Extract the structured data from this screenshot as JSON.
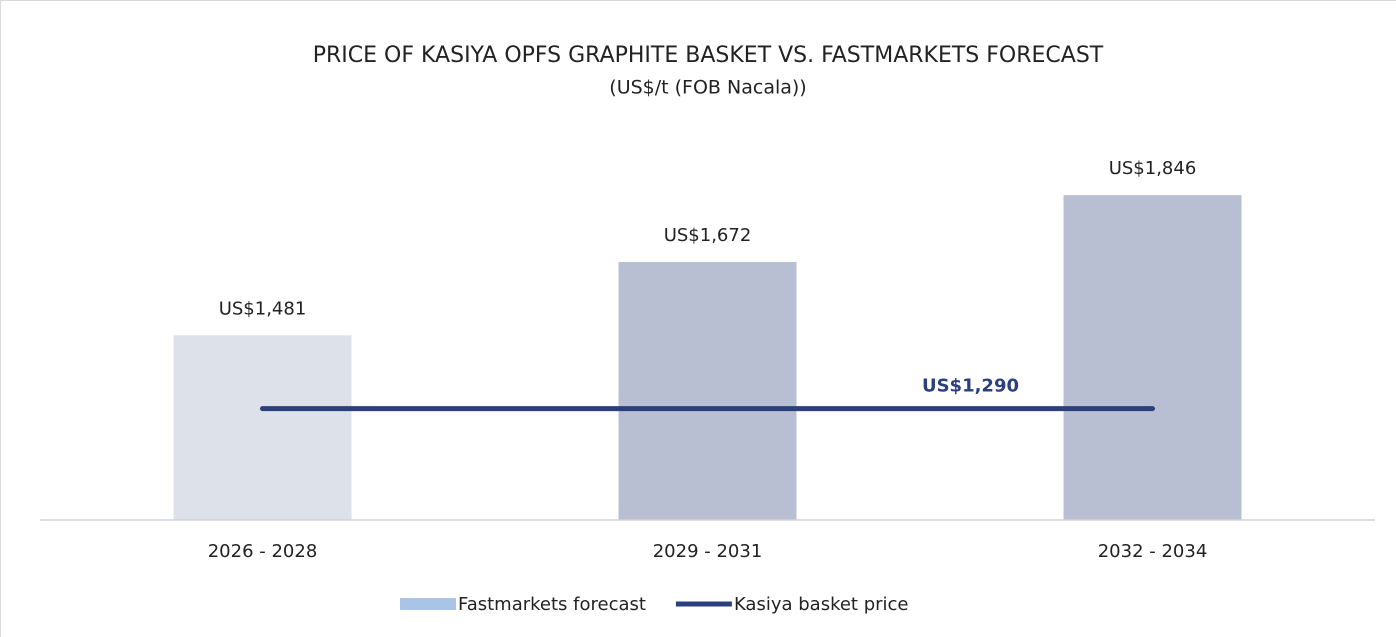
{
  "chart_data": {
    "type": "bar",
    "title": "PRICE OF KASIYA OPFS GRAPHITE BASKET VS. FASTMARKETS FORECAST",
    "subtitle": "(US$/t (FOB Nacala))",
    "categories": [
      "2026 - 2028",
      "2029 - 2031",
      "2032 - 2034"
    ],
    "ylim": [
      1000,
      2000
    ],
    "series": [
      {
        "name": "Fastmarkets forecast",
        "color": "#a9c4e6",
        "bar_colors": [
          "#dde1ea",
          "#b8bfd2",
          "#b8bfd2"
        ],
        "values": [
          1481,
          1672,
          1846
        ],
        "value_labels": [
          "US$1,481",
          "US$1,672",
          "US$1,846"
        ]
      },
      {
        "name": "Kasiya basket price",
        "type": "line",
        "color": "#2b3f7e",
        "value": 1290,
        "value_label": "US$1,290"
      }
    ]
  }
}
